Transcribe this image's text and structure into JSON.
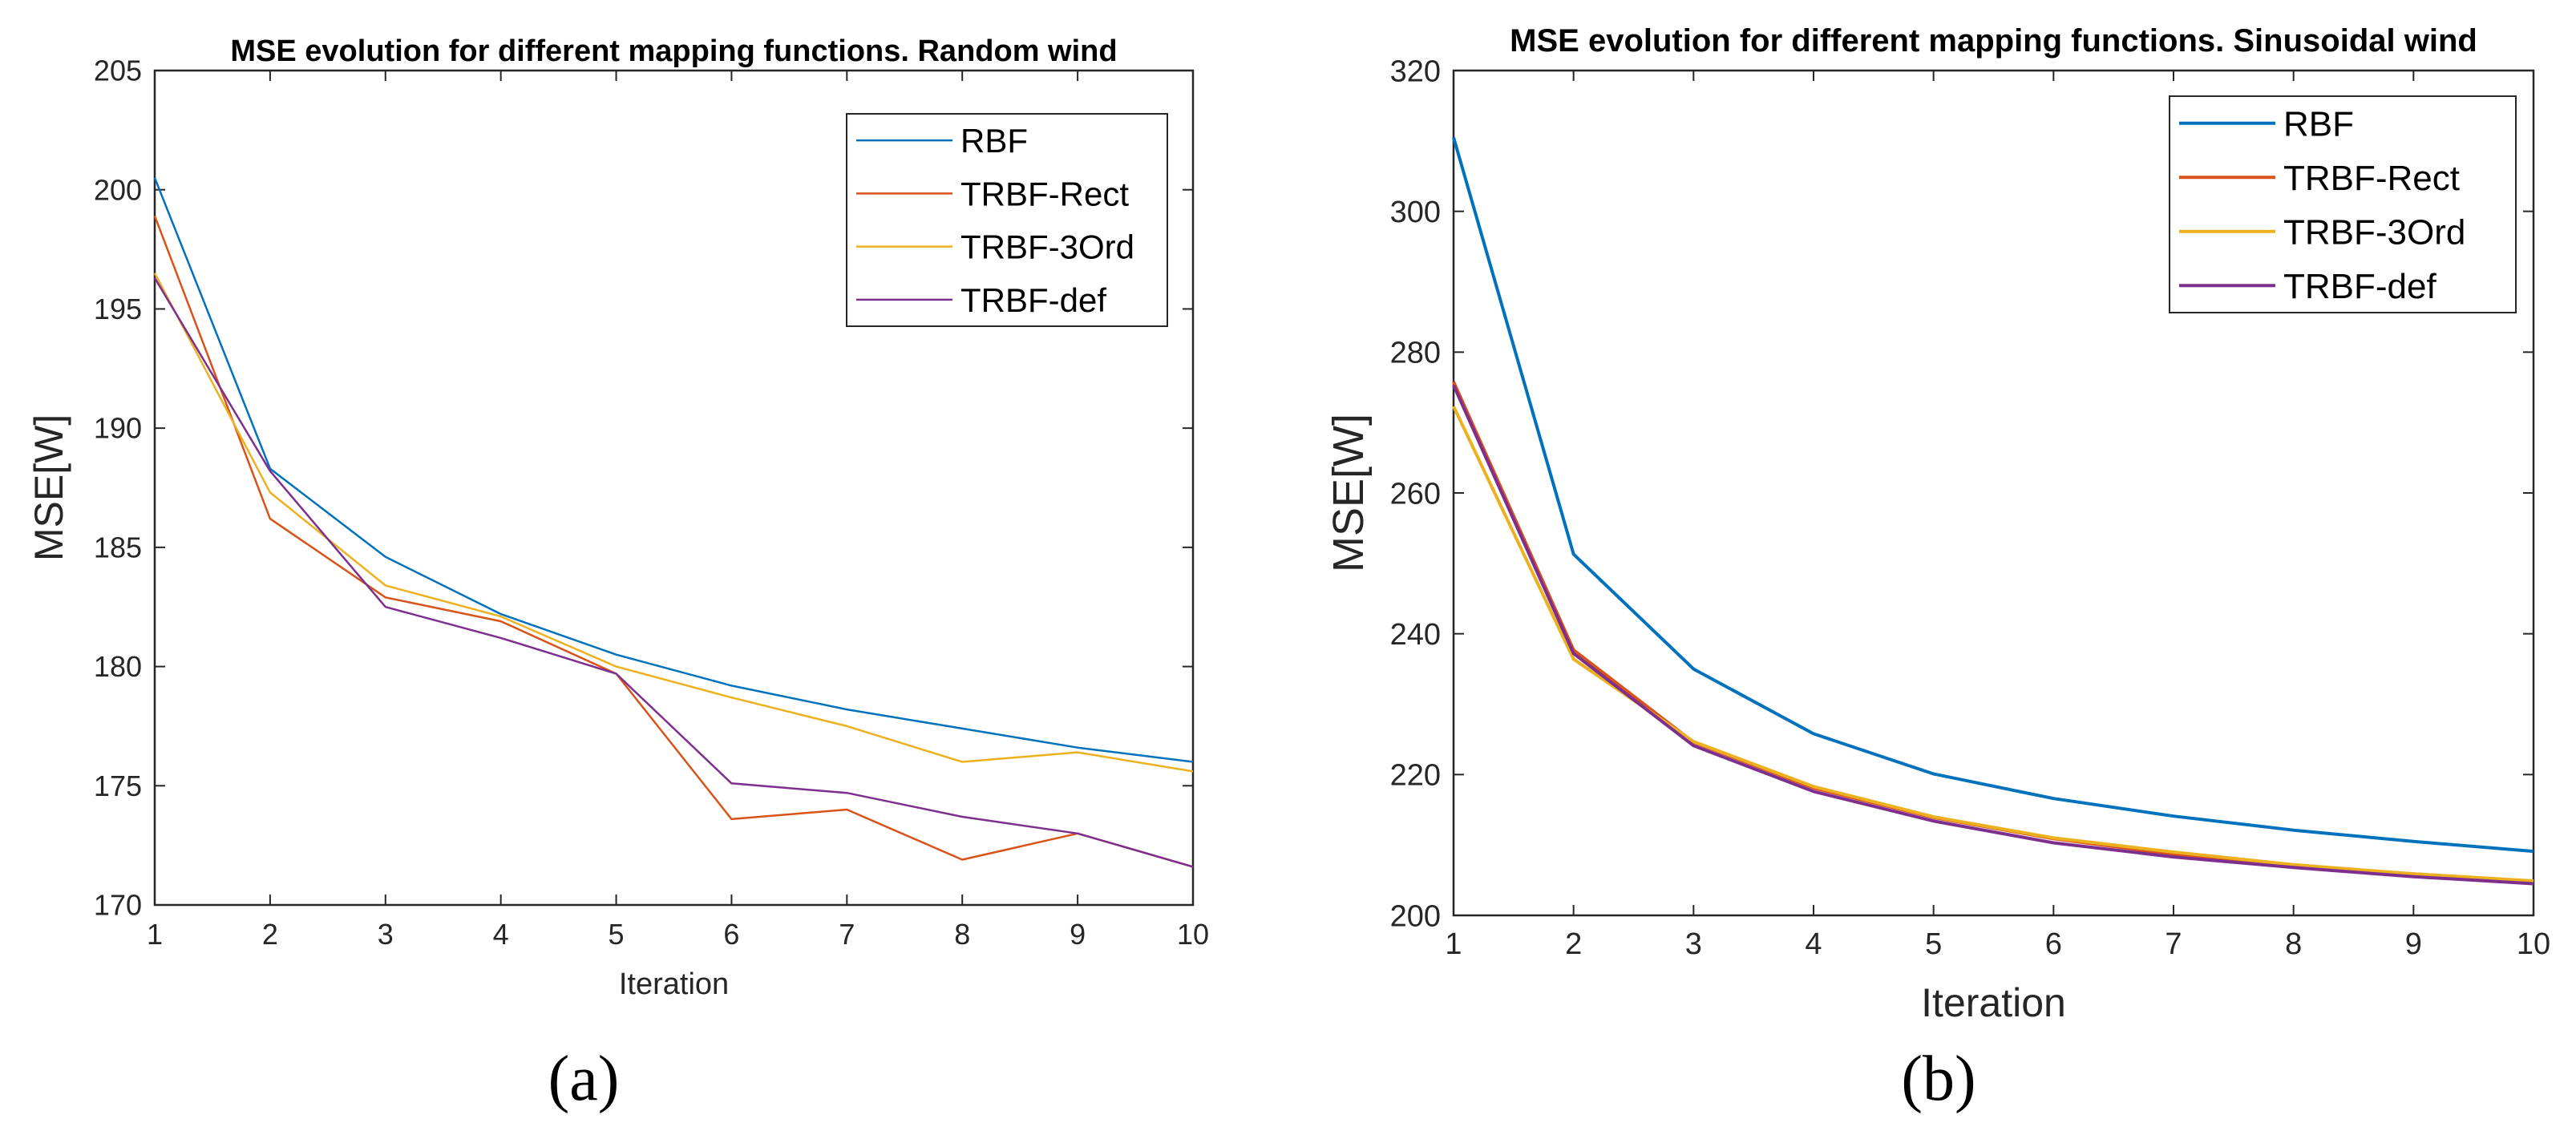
{
  "colors": {
    "RBF": "#0072BD",
    "TRBF-Rect": "#D95319",
    "TRBF-3Ord": "#EDB120",
    "TRBF-def": "#7E2F8E",
    "axis": "#262626"
  },
  "chart_data": [
    {
      "type": "line",
      "title": "MSE evolution for different mapping functions. Random wind",
      "xlabel": "Iteration",
      "ylabel": "MSE[W]",
      "caption": "(a)",
      "xlim": [
        1,
        10
      ],
      "ylim": [
        170,
        205
      ],
      "xticks": [
        1,
        2,
        3,
        4,
        5,
        6,
        7,
        8,
        9,
        10
      ],
      "yticks": [
        170,
        175,
        180,
        185,
        190,
        195,
        200,
        205
      ],
      "grid": false,
      "legend_position": "top-right",
      "x": [
        1,
        2,
        3,
        4,
        5,
        6,
        7,
        8,
        9,
        10
      ],
      "series": [
        {
          "name": "RBF",
          "values": [
            200.5,
            188.3,
            184.6,
            182.2,
            180.5,
            179.2,
            178.2,
            177.4,
            176.6,
            176.0
          ]
        },
        {
          "name": "TRBF-Rect",
          "values": [
            198.9,
            186.2,
            182.9,
            181.9,
            179.7,
            173.6,
            174.0,
            171.9,
            173.0,
            171.6
          ]
        },
        {
          "name": "TRBF-3Ord",
          "values": [
            196.5,
            187.3,
            183.4,
            182.1,
            180.0,
            178.7,
            177.5,
            176.0,
            176.4,
            175.6
          ]
        },
        {
          "name": "TRBF-def",
          "values": [
            196.3,
            188.2,
            182.5,
            181.2,
            179.7,
            175.1,
            174.7,
            173.7,
            173.0,
            171.6
          ]
        }
      ]
    },
    {
      "type": "line",
      "title": "MSE evolution for different mapping functions. Sinusoidal wind",
      "xlabel": "Iteration",
      "ylabel": "MSE[W]",
      "caption": "(b)",
      "xlim": [
        1,
        10
      ],
      "ylim": [
        200,
        320
      ],
      "xticks": [
        1,
        2,
        3,
        4,
        5,
        6,
        7,
        8,
        9,
        10
      ],
      "yticks": [
        200,
        220,
        240,
        260,
        280,
        300,
        320
      ],
      "grid": false,
      "legend_position": "top-right",
      "x": [
        1,
        2,
        3,
        4,
        5,
        6,
        7,
        8,
        9,
        10
      ],
      "series": [
        {
          "name": "RBF",
          "values": [
            310.5,
            251.3,
            235.0,
            225.8,
            220.1,
            216.6,
            214.1,
            212.1,
            210.5,
            209.1
          ]
        },
        {
          "name": "TRBF-Rect",
          "values": [
            275.8,
            237.7,
            224.6,
            218.1,
            213.9,
            210.9,
            208.7,
            207.0,
            205.9,
            204.8
          ]
        },
        {
          "name": "TRBF-3Ord",
          "values": [
            272.3,
            236.4,
            224.7,
            218.3,
            214.0,
            211.0,
            209.0,
            207.2,
            205.9,
            204.9
          ]
        },
        {
          "name": "TRBF-def",
          "values": [
            275.3,
            237.2,
            224.1,
            217.6,
            213.4,
            210.3,
            208.3,
            206.8,
            205.5,
            204.5
          ]
        }
      ]
    }
  ]
}
